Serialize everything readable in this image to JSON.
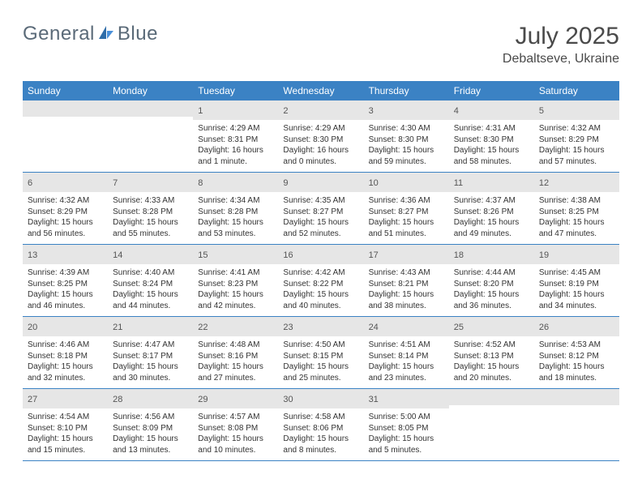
{
  "brand": {
    "word1": "General",
    "word2": "Blue",
    "accent_color": "#3b82c4",
    "text_color": "#5a6a78"
  },
  "title": "July 2025",
  "location": "Debaltseve, Ukraine",
  "colors": {
    "header_bg": "#3b82c4",
    "header_text": "#ffffff",
    "daynum_bg": "#e6e6e6",
    "border": "#3b82c4",
    "body_text": "#333333"
  },
  "day_headers": [
    "Sunday",
    "Monday",
    "Tuesday",
    "Wednesday",
    "Thursday",
    "Friday",
    "Saturday"
  ],
  "weeks": [
    [
      {
        "empty": true
      },
      {
        "empty": true
      },
      {
        "day": "1",
        "sunrise": "Sunrise: 4:29 AM",
        "sunset": "Sunset: 8:31 PM",
        "daylight1": "Daylight: 16 hours",
        "daylight2": "and 1 minute."
      },
      {
        "day": "2",
        "sunrise": "Sunrise: 4:29 AM",
        "sunset": "Sunset: 8:30 PM",
        "daylight1": "Daylight: 16 hours",
        "daylight2": "and 0 minutes."
      },
      {
        "day": "3",
        "sunrise": "Sunrise: 4:30 AM",
        "sunset": "Sunset: 8:30 PM",
        "daylight1": "Daylight: 15 hours",
        "daylight2": "and 59 minutes."
      },
      {
        "day": "4",
        "sunrise": "Sunrise: 4:31 AM",
        "sunset": "Sunset: 8:30 PM",
        "daylight1": "Daylight: 15 hours",
        "daylight2": "and 58 minutes."
      },
      {
        "day": "5",
        "sunrise": "Sunrise: 4:32 AM",
        "sunset": "Sunset: 8:29 PM",
        "daylight1": "Daylight: 15 hours",
        "daylight2": "and 57 minutes."
      }
    ],
    [
      {
        "day": "6",
        "sunrise": "Sunrise: 4:32 AM",
        "sunset": "Sunset: 8:29 PM",
        "daylight1": "Daylight: 15 hours",
        "daylight2": "and 56 minutes."
      },
      {
        "day": "7",
        "sunrise": "Sunrise: 4:33 AM",
        "sunset": "Sunset: 8:28 PM",
        "daylight1": "Daylight: 15 hours",
        "daylight2": "and 55 minutes."
      },
      {
        "day": "8",
        "sunrise": "Sunrise: 4:34 AM",
        "sunset": "Sunset: 8:28 PM",
        "daylight1": "Daylight: 15 hours",
        "daylight2": "and 53 minutes."
      },
      {
        "day": "9",
        "sunrise": "Sunrise: 4:35 AM",
        "sunset": "Sunset: 8:27 PM",
        "daylight1": "Daylight: 15 hours",
        "daylight2": "and 52 minutes."
      },
      {
        "day": "10",
        "sunrise": "Sunrise: 4:36 AM",
        "sunset": "Sunset: 8:27 PM",
        "daylight1": "Daylight: 15 hours",
        "daylight2": "and 51 minutes."
      },
      {
        "day": "11",
        "sunrise": "Sunrise: 4:37 AM",
        "sunset": "Sunset: 8:26 PM",
        "daylight1": "Daylight: 15 hours",
        "daylight2": "and 49 minutes."
      },
      {
        "day": "12",
        "sunrise": "Sunrise: 4:38 AM",
        "sunset": "Sunset: 8:25 PM",
        "daylight1": "Daylight: 15 hours",
        "daylight2": "and 47 minutes."
      }
    ],
    [
      {
        "day": "13",
        "sunrise": "Sunrise: 4:39 AM",
        "sunset": "Sunset: 8:25 PM",
        "daylight1": "Daylight: 15 hours",
        "daylight2": "and 46 minutes."
      },
      {
        "day": "14",
        "sunrise": "Sunrise: 4:40 AM",
        "sunset": "Sunset: 8:24 PM",
        "daylight1": "Daylight: 15 hours",
        "daylight2": "and 44 minutes."
      },
      {
        "day": "15",
        "sunrise": "Sunrise: 4:41 AM",
        "sunset": "Sunset: 8:23 PM",
        "daylight1": "Daylight: 15 hours",
        "daylight2": "and 42 minutes."
      },
      {
        "day": "16",
        "sunrise": "Sunrise: 4:42 AM",
        "sunset": "Sunset: 8:22 PM",
        "daylight1": "Daylight: 15 hours",
        "daylight2": "and 40 minutes."
      },
      {
        "day": "17",
        "sunrise": "Sunrise: 4:43 AM",
        "sunset": "Sunset: 8:21 PM",
        "daylight1": "Daylight: 15 hours",
        "daylight2": "and 38 minutes."
      },
      {
        "day": "18",
        "sunrise": "Sunrise: 4:44 AM",
        "sunset": "Sunset: 8:20 PM",
        "daylight1": "Daylight: 15 hours",
        "daylight2": "and 36 minutes."
      },
      {
        "day": "19",
        "sunrise": "Sunrise: 4:45 AM",
        "sunset": "Sunset: 8:19 PM",
        "daylight1": "Daylight: 15 hours",
        "daylight2": "and 34 minutes."
      }
    ],
    [
      {
        "day": "20",
        "sunrise": "Sunrise: 4:46 AM",
        "sunset": "Sunset: 8:18 PM",
        "daylight1": "Daylight: 15 hours",
        "daylight2": "and 32 minutes."
      },
      {
        "day": "21",
        "sunrise": "Sunrise: 4:47 AM",
        "sunset": "Sunset: 8:17 PM",
        "daylight1": "Daylight: 15 hours",
        "daylight2": "and 30 minutes."
      },
      {
        "day": "22",
        "sunrise": "Sunrise: 4:48 AM",
        "sunset": "Sunset: 8:16 PM",
        "daylight1": "Daylight: 15 hours",
        "daylight2": "and 27 minutes."
      },
      {
        "day": "23",
        "sunrise": "Sunrise: 4:50 AM",
        "sunset": "Sunset: 8:15 PM",
        "daylight1": "Daylight: 15 hours",
        "daylight2": "and 25 minutes."
      },
      {
        "day": "24",
        "sunrise": "Sunrise: 4:51 AM",
        "sunset": "Sunset: 8:14 PM",
        "daylight1": "Daylight: 15 hours",
        "daylight2": "and 23 minutes."
      },
      {
        "day": "25",
        "sunrise": "Sunrise: 4:52 AM",
        "sunset": "Sunset: 8:13 PM",
        "daylight1": "Daylight: 15 hours",
        "daylight2": "and 20 minutes."
      },
      {
        "day": "26",
        "sunrise": "Sunrise: 4:53 AM",
        "sunset": "Sunset: 8:12 PM",
        "daylight1": "Daylight: 15 hours",
        "daylight2": "and 18 minutes."
      }
    ],
    [
      {
        "day": "27",
        "sunrise": "Sunrise: 4:54 AM",
        "sunset": "Sunset: 8:10 PM",
        "daylight1": "Daylight: 15 hours",
        "daylight2": "and 15 minutes."
      },
      {
        "day": "28",
        "sunrise": "Sunrise: 4:56 AM",
        "sunset": "Sunset: 8:09 PM",
        "daylight1": "Daylight: 15 hours",
        "daylight2": "and 13 minutes."
      },
      {
        "day": "29",
        "sunrise": "Sunrise: 4:57 AM",
        "sunset": "Sunset: 8:08 PM",
        "daylight1": "Daylight: 15 hours",
        "daylight2": "and 10 minutes."
      },
      {
        "day": "30",
        "sunrise": "Sunrise: 4:58 AM",
        "sunset": "Sunset: 8:06 PM",
        "daylight1": "Daylight: 15 hours",
        "daylight2": "and 8 minutes."
      },
      {
        "day": "31",
        "sunrise": "Sunrise: 5:00 AM",
        "sunset": "Sunset: 8:05 PM",
        "daylight1": "Daylight: 15 hours",
        "daylight2": "and 5 minutes."
      },
      {
        "empty": true
      },
      {
        "empty": true
      }
    ]
  ]
}
